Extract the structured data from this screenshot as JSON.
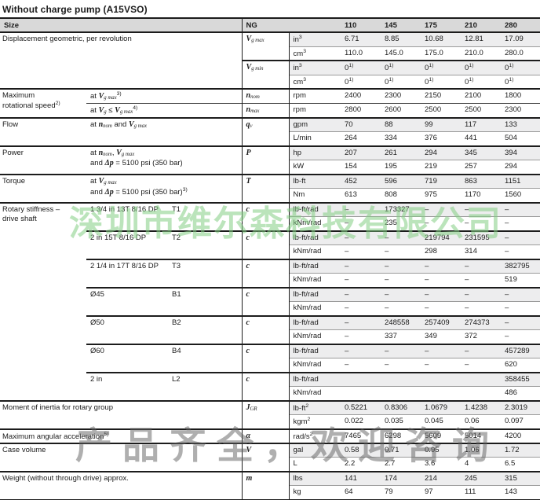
{
  "title": "Without charge pump (A15VSO)",
  "watermarks": {
    "center_green": "深圳市维尔森科技有限公司",
    "bottom_gray": "产品齐全，欢迎咨询"
  },
  "table": {
    "header": {
      "size": "Size",
      "ng": "NG",
      "cols": [
        "110",
        "145",
        "175",
        "210",
        "280"
      ]
    },
    "params": {
      "displacement": {
        "label": "Displacement geometric, per revolution",
        "sym_max": "*V*~g max~",
        "sym_min": "*V*~g min~"
      },
      "speed": {
        "label": "Maximum\nrotational speed^2)^",
        "cond_nom": "at *V*~g max~^3)^",
        "cond_max": "at *V*~g~ ≤ *V*~g max~^4)^",
        "sym_nom": "*n*~nom~",
        "sym_max": "*n*~max~"
      },
      "flow": {
        "label": "Flow",
        "cond": "at *n*~nom~ and *V*~g max~",
        "sym": "*q*~v~"
      },
      "power": {
        "label": "Power",
        "cond": "at *n*~nom~, *V*~g max~\nand *Δp* = 5100 psi (350 bar)",
        "sym": "*P*"
      },
      "torque": {
        "label": "Torque",
        "cond": "at *V*~g max~\nand *Δp* = 5100 psi (350 bar)^3)^",
        "sym": "*T*"
      },
      "stiffness": {
        "label": "Rotary stiffness –\ndrive shaft",
        "sym": "*c*",
        "shafts": [
          {
            "name": "1 3/4 in 13T 8/16 DP",
            "code": "T1"
          },
          {
            "name": "2 in 15T 8/16 DP",
            "code": "T2"
          },
          {
            "name": "2 1/4 in 17T 8/16 DP",
            "code": "T3"
          },
          {
            "name": "Ø45",
            "code": "B1"
          },
          {
            "name": "Ø50",
            "code": "B2"
          },
          {
            "name": "Ø60",
            "code": "B4"
          },
          {
            "name": "2 in",
            "code": "L2"
          }
        ]
      },
      "inertia": {
        "label": "Moment of inertia for rotary group",
        "sym": "*J*~GR~"
      },
      "accel": {
        "label": "Maximum angular acceleration^5)^",
        "sym": "*α*"
      },
      "case_volume": {
        "label": "Case volume",
        "sym": "*V*"
      },
      "weight": {
        "label": "Weight (without through drive) approx.",
        "sym": "*m*"
      }
    },
    "rows": [
      {
        "unit": "in^3^",
        "values": [
          "6.71",
          "8.85",
          "10.68",
          "12.81",
          "17.09"
        ]
      },
      {
        "unit": "cm^3^",
        "values": [
          "110.0",
          "145.0",
          "175.0",
          "210.0",
          "280.0"
        ]
      },
      {
        "unit": "in^3^",
        "values": [
          "0^1)^",
          "0^1)^",
          "0^1)^",
          "0^1)^",
          "0^1)^"
        ]
      },
      {
        "unit": "cm^3^",
        "values": [
          "0^1)^",
          "0^1)^",
          "0^1)^",
          "0^1)^",
          "0^1)^"
        ]
      },
      {
        "unit": "rpm",
        "values": [
          "2400",
          "2300",
          "2150",
          "2100",
          "1800"
        ]
      },
      {
        "unit": "rpm",
        "values": [
          "2800",
          "2600",
          "2500",
          "2500",
          "2300"
        ]
      },
      {
        "unit": "gpm",
        "values": [
          "70",
          "88",
          "99",
          "117",
          "133"
        ]
      },
      {
        "unit": "L/min",
        "values": [
          "264",
          "334",
          "376",
          "441",
          "504"
        ]
      },
      {
        "unit": "hp",
        "values": [
          "207",
          "261",
          "294",
          "345",
          "394"
        ]
      },
      {
        "unit": "kW",
        "values": [
          "154",
          "195",
          "219",
          "257",
          "294"
        ]
      },
      {
        "unit": "lb-ft",
        "values": [
          "452",
          "596",
          "719",
          "863",
          "1151"
        ]
      },
      {
        "unit": "Nm",
        "values": [
          "613",
          "808",
          "975",
          "1170",
          "1560"
        ]
      },
      {
        "unit": "lb-ft/rad",
        "values": [
          "–",
          "173327",
          "–",
          "–",
          "–"
        ]
      },
      {
        "unit": "kNm/rad",
        "values": [
          "–",
          "235",
          "–",
          "–",
          "–"
        ]
      },
      {
        "unit": "lb-ft/rad",
        "values": [
          "–",
          "–",
          "219794",
          "231595",
          "–"
        ]
      },
      {
        "unit": "kNm/rad",
        "values": [
          "–",
          "–",
          "298",
          "314",
          "–"
        ]
      },
      {
        "unit": "lb-ft/rad",
        "values": [
          "–",
          "–",
          "–",
          "–",
          "382795"
        ]
      },
      {
        "unit": "kNm/rad",
        "values": [
          "–",
          "–",
          "–",
          "–",
          "519"
        ]
      },
      {
        "unit": "lb-ft/rad",
        "values": [
          "–",
          "–",
          "–",
          "–",
          "–"
        ]
      },
      {
        "unit": "kNm/rad",
        "values": [
          "–",
          "–",
          "–",
          "–",
          "–"
        ]
      },
      {
        "unit": "lb-ft/rad",
        "values": [
          "–",
          "248558",
          "257409",
          "274373",
          "–"
        ]
      },
      {
        "unit": "kNm/rad",
        "values": [
          "–",
          "337",
          "349",
          "372",
          "–"
        ]
      },
      {
        "unit": "lb-ft/rad",
        "values": [
          "–",
          "–",
          "–",
          "–",
          "457289"
        ]
      },
      {
        "unit": "kNm/rad",
        "values": [
          "–",
          "–",
          "–",
          "–",
          "620"
        ]
      },
      {
        "unit": "lb-ft/rad",
        "values": [
          "",
          "",
          "",
          "",
          "358455"
        ]
      },
      {
        "unit": "kNm/rad",
        "values": [
          "",
          "",
          "",
          "",
          "486"
        ]
      },
      {
        "unit": "lb-ft^2^",
        "values": [
          "0.5221",
          "0.8306",
          "1.0679",
          "1.4238",
          "2.3019"
        ]
      },
      {
        "unit": "kgm^2^",
        "values": [
          "0.022",
          "0.035",
          "0.045",
          "0.06",
          "0.097"
        ]
      },
      {
        "unit": "rad/s^2^",
        "values": [
          "7465",
          "6298",
          "5609",
          "5014",
          "4200"
        ]
      },
      {
        "unit": "gal",
        "values": [
          "0.58",
          "0.71",
          "0.95",
          "1.06",
          "1.72"
        ]
      },
      {
        "unit": "L",
        "values": [
          "2.2",
          "2.7",
          "3.6",
          "4",
          "6.5"
        ]
      },
      {
        "unit": "lbs",
        "values": [
          "141",
          "174",
          "214",
          "245",
          "315"
        ]
      },
      {
        "unit": "kg",
        "values": [
          "64",
          "79",
          "97",
          "111",
          "143"
        ]
      }
    ]
  }
}
